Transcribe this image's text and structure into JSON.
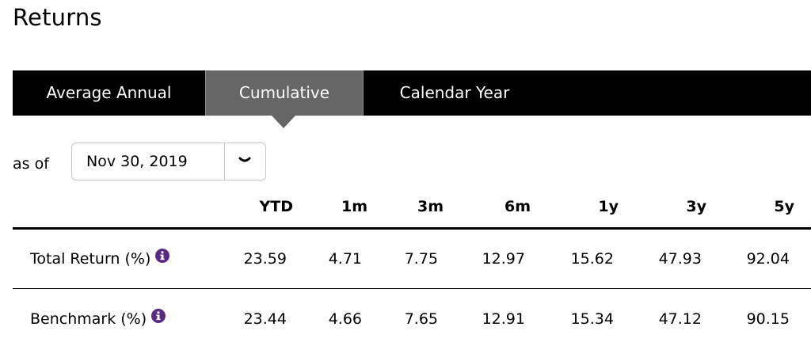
{
  "page": {
    "title": "Returns"
  },
  "tabs": [
    {
      "label": "Average Annual",
      "active": false
    },
    {
      "label": "Cumulative",
      "active": true
    },
    {
      "label": "Calendar Year",
      "active": false
    }
  ],
  "as_of": {
    "label": "as of",
    "selected": "Nov 30, 2019"
  },
  "table": {
    "columns": [
      "YTD",
      "1m",
      "3m",
      "6m",
      "1y",
      "3y",
      "5y"
    ],
    "rows": [
      {
        "label": "Total Return (%)",
        "values": [
          "23.59",
          "4.71",
          "7.75",
          "12.97",
          "15.62",
          "47.93",
          "92.04"
        ]
      },
      {
        "label": "Benchmark (%)",
        "values": [
          "23.44",
          "4.66",
          "7.65",
          "12.91",
          "15.34",
          "47.12",
          "90.15"
        ]
      }
    ]
  },
  "colors": {
    "tab_bar": "#000000",
    "tab_active": "#666666",
    "info_icon": "#5a2a82"
  },
  "icons": {
    "dropdown": "chevron-down-icon",
    "info": "info-icon"
  }
}
